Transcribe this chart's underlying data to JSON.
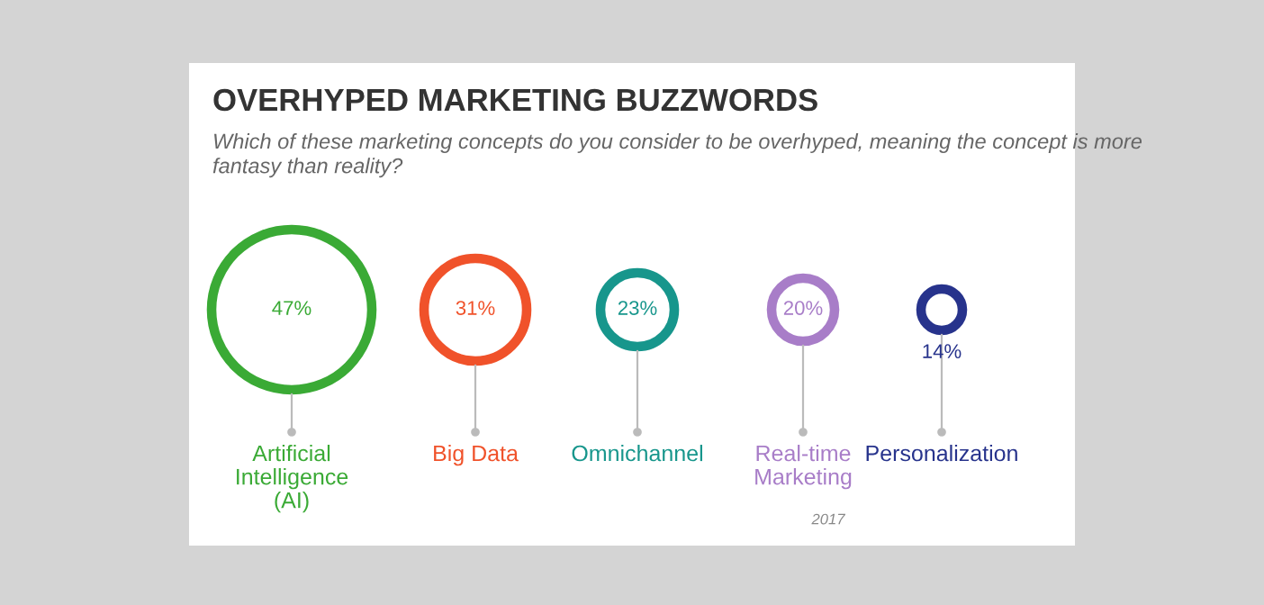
{
  "chart_data": {
    "type": "other",
    "title": "OVERHYPED MARKETING BUZZWORDS",
    "subtitle": "Which of these marketing concepts do you consider to be overhyped, meaning the concept is more\nfantasy than reality?",
    "categories": [
      "Artificial\nIntelligence\n(AI)",
      "Big Data",
      "Omnichannel",
      "Real-time\nMarketing",
      "Personalization"
    ],
    "values": [
      47,
      31,
      23,
      20,
      14
    ],
    "value_labels": [
      "47%",
      "31%",
      "23%",
      "20%",
      "14%"
    ],
    "colors": [
      "#3aaa35",
      "#f0522a",
      "#17968c",
      "#a87dc8",
      "#27338c"
    ],
    "annotations": [
      "2017"
    ]
  }
}
